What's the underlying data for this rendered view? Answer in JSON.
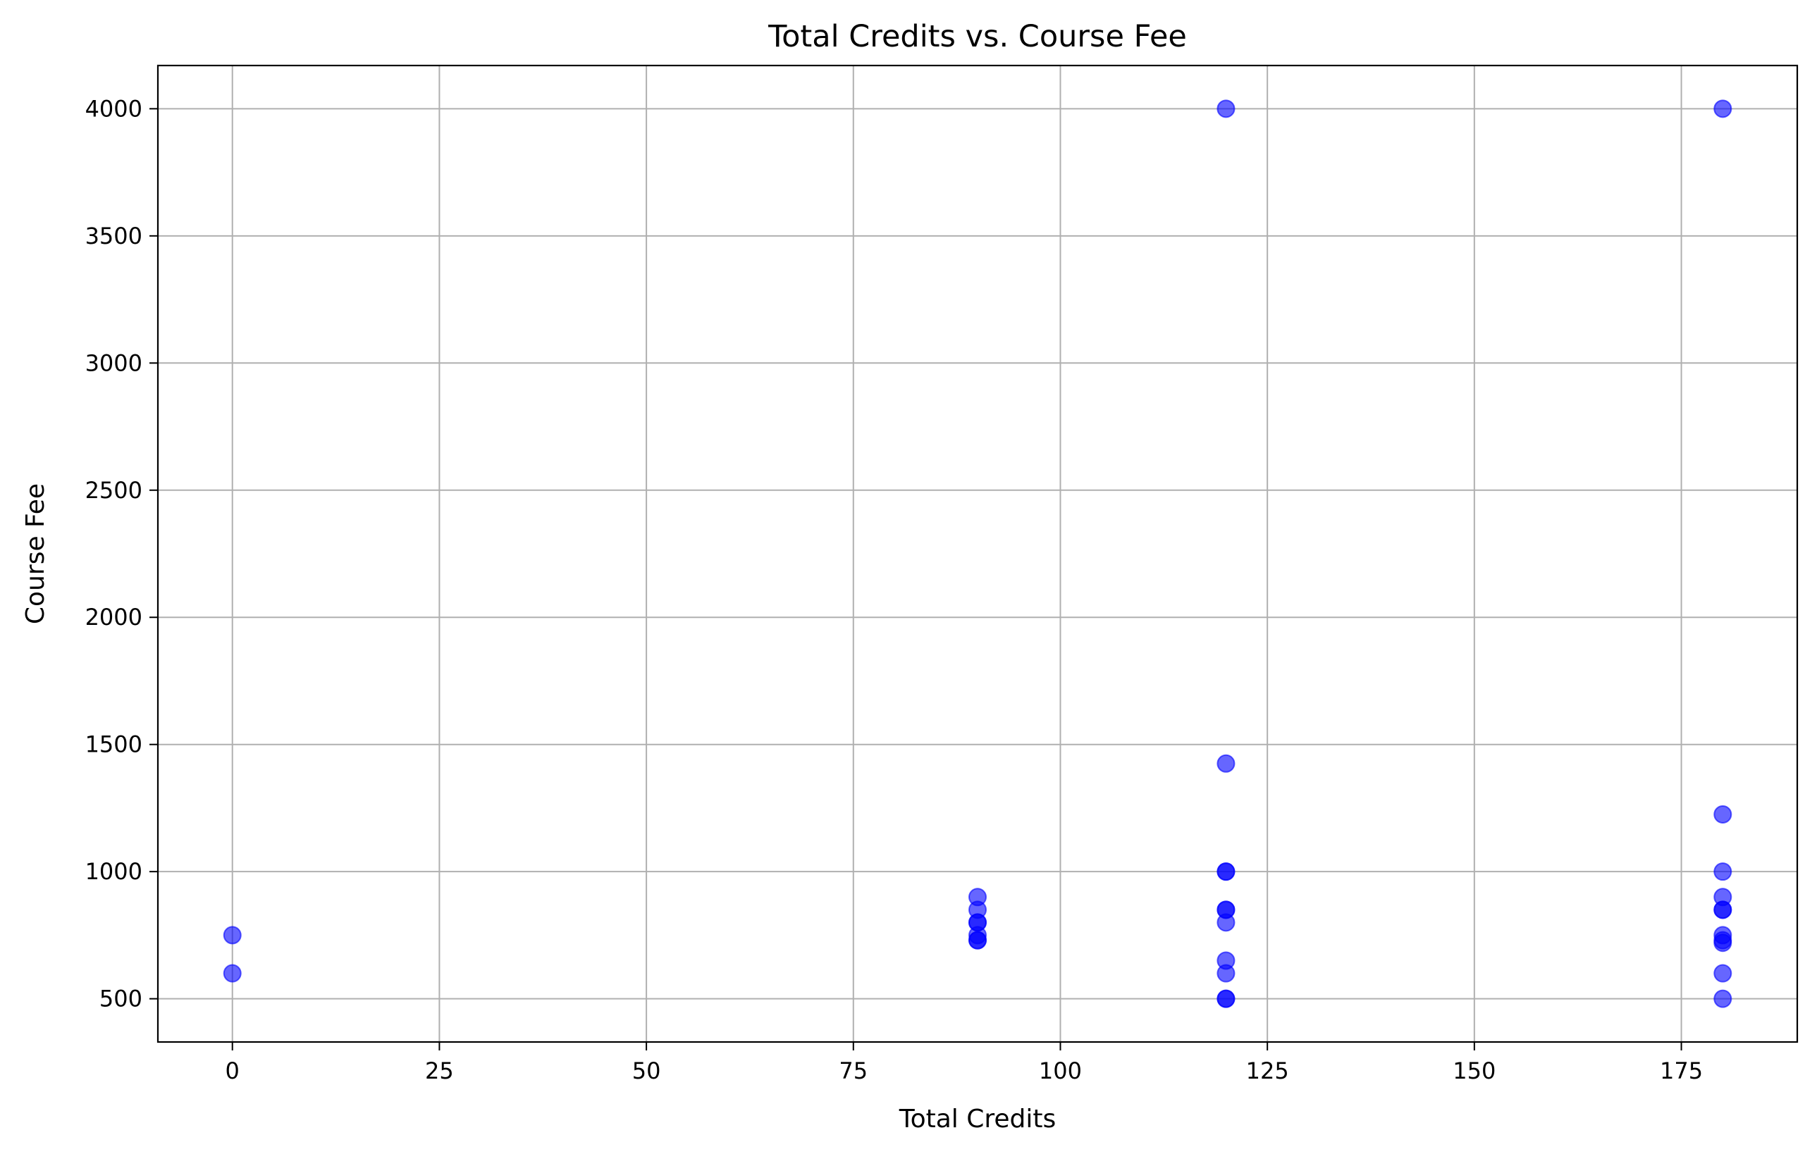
{
  "chart_data": {
    "type": "scatter",
    "title": "Total Credits vs. Course Fee",
    "xlabel": "Total Credits",
    "ylabel": "Course Fee",
    "xlim": [
      -9,
      189
    ],
    "ylim": [
      330,
      4170
    ],
    "xticks": [
      0,
      25,
      50,
      75,
      100,
      125,
      150,
      175
    ],
    "yticks": [
      500,
      1000,
      1500,
      2000,
      2500,
      3000,
      3500,
      4000
    ],
    "grid": true,
    "legend": "none",
    "marker_color": "#0000ff",
    "marker_alpha": 0.6,
    "points": [
      {
        "x": 0,
        "y": 750
      },
      {
        "x": 0,
        "y": 600
      },
      {
        "x": 90,
        "y": 900
      },
      {
        "x": 90,
        "y": 850
      },
      {
        "x": 90,
        "y": 800
      },
      {
        "x": 90,
        "y": 800
      },
      {
        "x": 90,
        "y": 750
      },
      {
        "x": 90,
        "y": 730
      },
      {
        "x": 90,
        "y": 730
      },
      {
        "x": 120,
        "y": 4000
      },
      {
        "x": 120,
        "y": 1425
      },
      {
        "x": 120,
        "y": 1000
      },
      {
        "x": 120,
        "y": 1000
      },
      {
        "x": 120,
        "y": 850
      },
      {
        "x": 120,
        "y": 850
      },
      {
        "x": 120,
        "y": 800
      },
      {
        "x": 120,
        "y": 650
      },
      {
        "x": 120,
        "y": 600
      },
      {
        "x": 120,
        "y": 500
      },
      {
        "x": 120,
        "y": 500
      },
      {
        "x": 180,
        "y": 4000
      },
      {
        "x": 180,
        "y": 1225
      },
      {
        "x": 180,
        "y": 1000
      },
      {
        "x": 180,
        "y": 900
      },
      {
        "x": 180,
        "y": 850
      },
      {
        "x": 180,
        "y": 850
      },
      {
        "x": 180,
        "y": 750
      },
      {
        "x": 180,
        "y": 730
      },
      {
        "x": 180,
        "y": 720
      },
      {
        "x": 180,
        "y": 600
      },
      {
        "x": 180,
        "y": 500
      }
    ]
  }
}
